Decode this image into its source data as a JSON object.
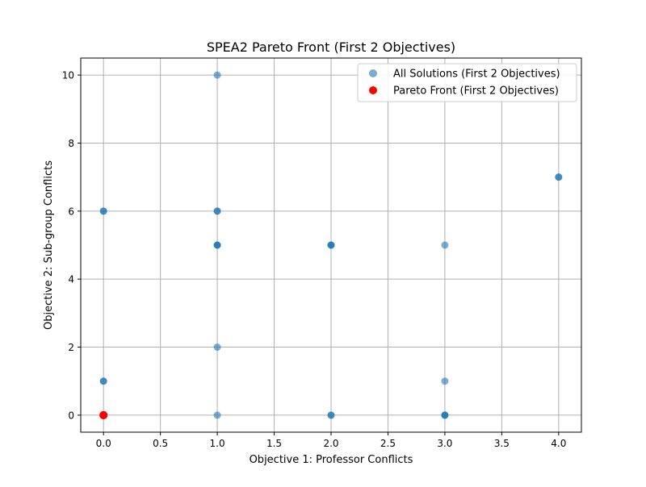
{
  "chart_data": {
    "type": "scatter",
    "title": "SPEA2 Pareto Front (First 2 Objectives)",
    "xlabel": "Objective 1: Professor Conflicts",
    "ylabel": "Objective 2: Sub-group Conflicts",
    "xlim": [
      -0.2,
      4.2
    ],
    "ylim": [
      -0.5,
      10.5
    ],
    "xticks": [
      0.0,
      0.5,
      1.0,
      1.5,
      2.0,
      2.5,
      3.0,
      3.5,
      4.0
    ],
    "xtick_labels": [
      "0.0",
      "0.5",
      "1.0",
      "1.5",
      "2.0",
      "2.5",
      "3.0",
      "3.5",
      "4.0"
    ],
    "yticks": [
      0,
      2,
      4,
      6,
      8,
      10
    ],
    "ytick_labels": [
      "0",
      "2",
      "4",
      "6",
      "8",
      "10"
    ],
    "grid": true,
    "legend_position": "top-right",
    "series": [
      {
        "name": "All Solutions (First 2 Objectives)",
        "color": "#1f77b4",
        "opacity": 0.6,
        "points": [
          [
            0,
            0
          ],
          [
            0,
            1
          ],
          [
            0,
            1
          ],
          [
            0,
            6
          ],
          [
            0,
            6
          ],
          [
            1,
            0
          ],
          [
            1,
            2
          ],
          [
            1,
            5
          ],
          [
            1,
            5
          ],
          [
            1,
            5
          ],
          [
            1,
            6
          ],
          [
            1,
            6
          ],
          [
            1,
            10
          ],
          [
            2,
            0
          ],
          [
            2,
            0
          ],
          [
            2,
            5
          ],
          [
            2,
            5
          ],
          [
            2,
            5
          ],
          [
            3,
            0
          ],
          [
            3,
            0
          ],
          [
            3,
            0
          ],
          [
            3,
            1
          ],
          [
            3,
            5
          ],
          [
            4,
            7
          ],
          [
            4,
            7
          ]
        ]
      },
      {
        "name": "Pareto Front (First 2 Objectives)",
        "color": "#ff0000",
        "opacity": 1.0,
        "points": [
          [
            0,
            0
          ],
          [
            0,
            0
          ]
        ]
      }
    ]
  }
}
